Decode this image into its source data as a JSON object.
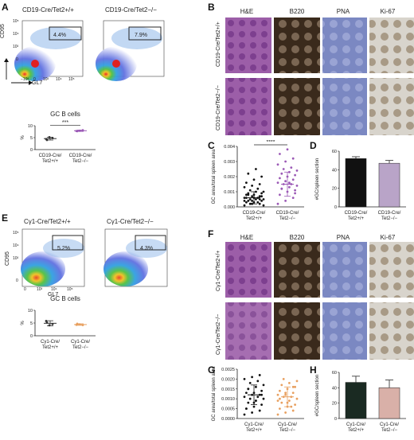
{
  "panels": {
    "A": {
      "letter": "A",
      "flow_left_title": "CD19-Cre/Tet2+/+",
      "flow_right_title": "CD19-Cre/Tet2−/−",
      "gate_left": "4.4%",
      "gate_right": "7.9%",
      "y_label": "CD95",
      "x_label": "GL7",
      "y_ticks": [
        "10⁵",
        "10⁴",
        "10³",
        "0"
      ],
      "x_ticks": [
        "−10³",
        "0",
        "10³",
        "10⁴",
        "10⁵"
      ]
    },
    "B": {
      "letter": "B",
      "col_headers": [
        "H&E",
        "B220",
        "PNA",
        "Ki-67"
      ],
      "row_labels": [
        "CD19-Cre/Tet2+/+",
        "CD19-Cre/Tet2−/−"
      ]
    },
    "C": {
      "letter": "C"
    },
    "D": {
      "letter": "D"
    },
    "E": {
      "letter": "E",
      "flow_left_title": "Cγ1-Cre/Tet2+/+",
      "flow_right_title": "Cγ1-Cre/Tet2−/−",
      "gate_left": "5.2%",
      "gate_right": "4.3%",
      "y_label": "CD95",
      "x_label": "GL7",
      "y_ticks": [
        "10⁵",
        "10⁴",
        "10³",
        "0"
      ],
      "x_ticks": [
        "0",
        "10³",
        "10⁴",
        "10⁵"
      ]
    },
    "F": {
      "letter": "F",
      "col_headers": [
        "H&E",
        "B220",
        "PNA",
        "Ki-67"
      ],
      "row_labels": [
        "Cγ1-Cre/Tet2+/+",
        "Cγ1-Cre/Tet2−/−"
      ]
    },
    "G": {
      "letter": "G"
    },
    "H": {
      "letter": "H"
    }
  },
  "colors": {
    "purple": "#9b59b6",
    "orange": "#e8a060",
    "dark": "#111111",
    "dark_teal": "#1a2a22",
    "pink": "#d9b0b8"
  },
  "chart_data": [
    {
      "id": "A-gcb",
      "type": "scatter",
      "title": "GC B cells",
      "ylabel": "%",
      "categories": [
        "CD19-Cre/Tet2+/+",
        "CD19-Cre/Tet2−/−"
      ],
      "yticks": [
        "10",
        "5",
        "0"
      ],
      "ylim": [
        0,
        10
      ],
      "significance": "***",
      "series": [
        {
          "values": [
            4.4,
            5.2,
            4.8,
            4.0
          ],
          "mean": 4.6,
          "sd": 0.6
        },
        {
          "values": [
            7.8,
            7.9,
            8.1,
            7.7
          ],
          "mean": 7.9,
          "sd": 0.3
        }
      ]
    },
    {
      "id": "C-area",
      "type": "scatter",
      "ylabel": "GC area/total spleen area",
      "categories": [
        "CD19-Cre/Tet2+/+",
        "CD19-Cre/Tet2−/−"
      ],
      "yticks": [
        "0.004",
        "0.003",
        "0.002",
        "0.001",
        "0.000"
      ],
      "ylim": [
        0,
        0.004
      ],
      "significance": "****",
      "series": [
        {
          "values": [
            0.0001,
            0.0002,
            0.0002,
            0.0003,
            0.0003,
            0.0004,
            0.0004,
            0.0005,
            0.0005,
            0.0005,
            0.0006,
            0.0006,
            0.0007,
            0.0007,
            0.0008,
            0.0008,
            0.0009,
            0.0009,
            0.001,
            0.001,
            0.0011,
            0.0012,
            0.0013,
            0.0014,
            0.0015,
            0.0016,
            0.0018,
            0.002,
            0.0022,
            0.0025,
            0.0001,
            0.0002,
            0.0003,
            0.0004,
            0.0004,
            0.0005,
            0.0006,
            0.0006,
            0.0007,
            0.0008
          ],
          "mean": 0.0006,
          "sd": 0.0004
        },
        {
          "values": [
            0.0002,
            0.0004,
            0.0006,
            0.0008,
            0.001,
            0.0011,
            0.0012,
            0.0013,
            0.0014,
            0.0015,
            0.0015,
            0.0016,
            0.0017,
            0.0018,
            0.0019,
            0.002,
            0.0021,
            0.0022,
            0.0023,
            0.0024,
            0.0025,
            0.0026,
            0.0028,
            0.003,
            0.0032,
            0.0035,
            0.0038,
            0.0009,
            0.0012,
            0.0016
          ],
          "mean": 0.0015,
          "sd": 0.0008
        }
      ]
    },
    {
      "id": "D-gc",
      "type": "bar",
      "ylabel": "#GC/spleen section",
      "categories": [
        "CD19-Cre/Tet2+/+",
        "CD19-Cre/Tet2−/−"
      ],
      "yticks": [
        "60",
        "40",
        "20",
        "0"
      ],
      "ylim": [
        0,
        60
      ],
      "values": [
        52,
        47
      ],
      "errors": [
        2,
        3
      ]
    },
    {
      "id": "E-gcb",
      "type": "scatter",
      "title": "GC B cells",
      "ylabel": "%",
      "categories": [
        "Cγ1-Cre/Tet2+/+",
        "Cγ1-Cre/Tet2−/−"
      ],
      "yticks": [
        "10",
        "5",
        "0"
      ],
      "ylim": [
        0,
        10
      ],
      "series": [
        {
          "values": [
            5.8,
            4.1,
            4.6,
            5.2
          ],
          "mean": 4.9,
          "sd": 1.0
        },
        {
          "values": [
            4.3,
            4.5,
            4.2,
            4.7
          ],
          "mean": 4.4,
          "sd": 0.3
        }
      ]
    },
    {
      "id": "G-area",
      "type": "scatter",
      "ylabel": "GC area/total spleen area",
      "categories": [
        "Cγ1-Cre/Tet2+/+",
        "Cγ1-Cre/Tet2−/−"
      ],
      "yticks": [
        "0.0025",
        "0.0020",
        "0.0015",
        "0.0010",
        "0.0005",
        "0.0000"
      ],
      "ylim": [
        0,
        0.0025
      ],
      "series": [
        {
          "values": [
            0.0002,
            0.0003,
            0.0004,
            0.0005,
            0.0006,
            0.0007,
            0.0008,
            0.0009,
            0.001,
            0.001,
            0.0011,
            0.0011,
            0.0012,
            0.0012,
            0.0013,
            0.0013,
            0.0014,
            0.0015,
            0.0016,
            0.0017,
            0.0018,
            0.0019,
            0.002,
            0.0021,
            0.0022,
            0.0005,
            0.0008,
            0.0012,
            0.0015,
            0.0009
          ],
          "mean": 0.0012,
          "sd": 0.0005
        },
        {
          "values": [
            0.0002,
            0.0003,
            0.0004,
            0.0005,
            0.0006,
            0.0007,
            0.0008,
            0.0009,
            0.001,
            0.0011,
            0.0011,
            0.0012,
            0.0012,
            0.0013,
            0.0014,
            0.0015,
            0.0016,
            0.0017,
            0.0018,
            0.0019,
            0.002,
            0.0006,
            0.0009,
            0.0013,
            0.0016,
            0.001,
            0.0008
          ],
          "mean": 0.0011,
          "sd": 0.0005
        }
      ]
    },
    {
      "id": "H-gc",
      "type": "bar",
      "ylabel": "#GC/spleen section",
      "categories": [
        "Cγ1-Cre/Tet2+/+",
        "Cγ1-Cre/Tet2−/−"
      ],
      "yticks": [
        "60",
        "40",
        "20",
        "0"
      ],
      "ylim": [
        0,
        60
      ],
      "values": [
        47,
        40
      ],
      "errors": [
        8,
        10
      ]
    }
  ]
}
